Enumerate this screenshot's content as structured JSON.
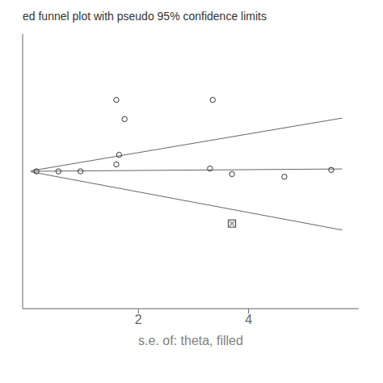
{
  "chart_data": {
    "type": "scatter",
    "title": "ed funnel plot with pseudo 95% confidence limits",
    "xlabel": "s.e. of: theta, filled",
    "xlim": [
      -0.1,
      6.0
    ],
    "ylim": [
      -1.0,
      1.0
    ],
    "xticks": [
      2,
      4
    ],
    "yticks": [],
    "tick_labels": "x",
    "grid": false,
    "series": [
      {
        "type": "line",
        "color": "#666666",
        "x": [
          0.05,
          5.7
        ],
        "values": [
          0.0034,
          0.3876
        ]
      },
      {
        "type": "line",
        "color": "#666666",
        "x": [
          0.05,
          5.7
        ],
        "values": [
          -0.00375,
          -0.4275
        ]
      },
      {
        "type": "line",
        "color": "#666666",
        "x": [
          0.05,
          5.7
        ],
        "values": [
          0.00015,
          0.0171
        ]
      },
      {
        "type": "scatter",
        "marker": "circle",
        "color": "#333333",
        "x": [
          0.15,
          0.55,
          0.95,
          1.6,
          1.65,
          3.3,
          3.7,
          4.65,
          5.5
        ],
        "values": [
          0.0,
          0.0,
          0.0,
          0.05,
          0.12,
          0.02,
          -0.02,
          -0.04,
          0.01
        ]
      },
      {
        "type": "scatter",
        "marker": "circle",
        "color": "#333333",
        "x": [
          1.6,
          1.75,
          3.35
        ],
        "values": [
          0.52,
          0.38,
          0.52
        ]
      },
      {
        "type": "scatter",
        "marker": "square_x",
        "color": "#333333",
        "x": [
          3.7
        ],
        "values": [
          -0.38
        ]
      }
    ]
  }
}
